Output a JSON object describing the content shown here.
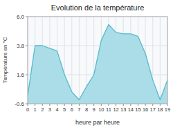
{
  "chart_data": {
    "type": "area",
    "title": "Evolution de la température",
    "x_label": "heure par heure",
    "y_label": "Température en °C",
    "x": [
      0,
      1,
      2,
      3,
      4,
      5,
      6,
      7,
      8,
      9,
      10,
      11,
      12,
      13,
      14,
      15,
      16,
      17,
      18,
      19
    ],
    "series": [
      {
        "color": "#55bbcc",
        "values": [
          0.0,
          3.8,
          3.8,
          3.6,
          3.4,
          1.6,
          0.3,
          -0.3,
          0.7,
          1.6,
          4.2,
          5.4,
          4.8,
          4.7,
          4.7,
          4.5,
          3.2,
          1.2,
          -0.3,
          1.2
        ]
      }
    ],
    "color": "#aadde8",
    "xlim": [
      0,
      19
    ],
    "ylim": [
      -0.6,
      6.0
    ],
    "xticks": [
      0,
      1,
      2,
      3,
      4,
      5,
      6,
      7,
      8,
      9,
      10,
      11,
      12,
      13,
      14,
      15,
      16,
      17,
      18,
      19
    ],
    "yticks": [
      -0.6,
      1.6,
      3.8,
      {
        "value": 6.0,
        "label": "6.0"
      }
    ],
    "grid": true
  }
}
